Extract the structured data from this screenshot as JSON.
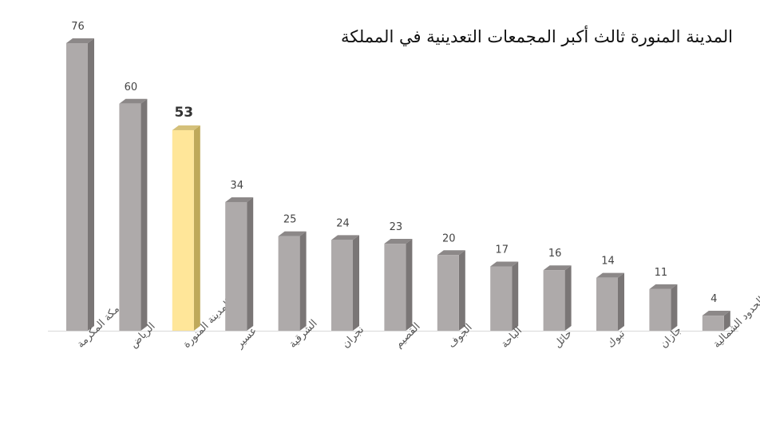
{
  "chart_data": {
    "type": "bar",
    "title": "المدينة المنورة ثالث أكبر المجمعات التعدينية في المملكة",
    "categories": [
      "مكة المكرمة",
      "الرياض",
      "المدينة المنورة",
      "عسير",
      "الشرقية",
      "نجران",
      "القصيم",
      "الجوف",
      "الباحة",
      "حائل",
      "تبوك",
      "جازان",
      "الحدود الشمالية"
    ],
    "values": [
      76,
      60,
      53,
      34,
      25,
      24,
      23,
      20,
      17,
      16,
      14,
      11,
      4
    ],
    "highlight_index": 2,
    "ylim": [
      0,
      76
    ],
    "grid": false,
    "legend": "none",
    "colors": {
      "bar_front": "#aeaaaa",
      "bar_side": "#7a7676",
      "bar_top": "#8c8888",
      "highlight_front": "#ffe699",
      "highlight_side": "#bfa95a",
      "highlight_top": "#d4c07a",
      "axis": "#d9d9d9"
    }
  }
}
